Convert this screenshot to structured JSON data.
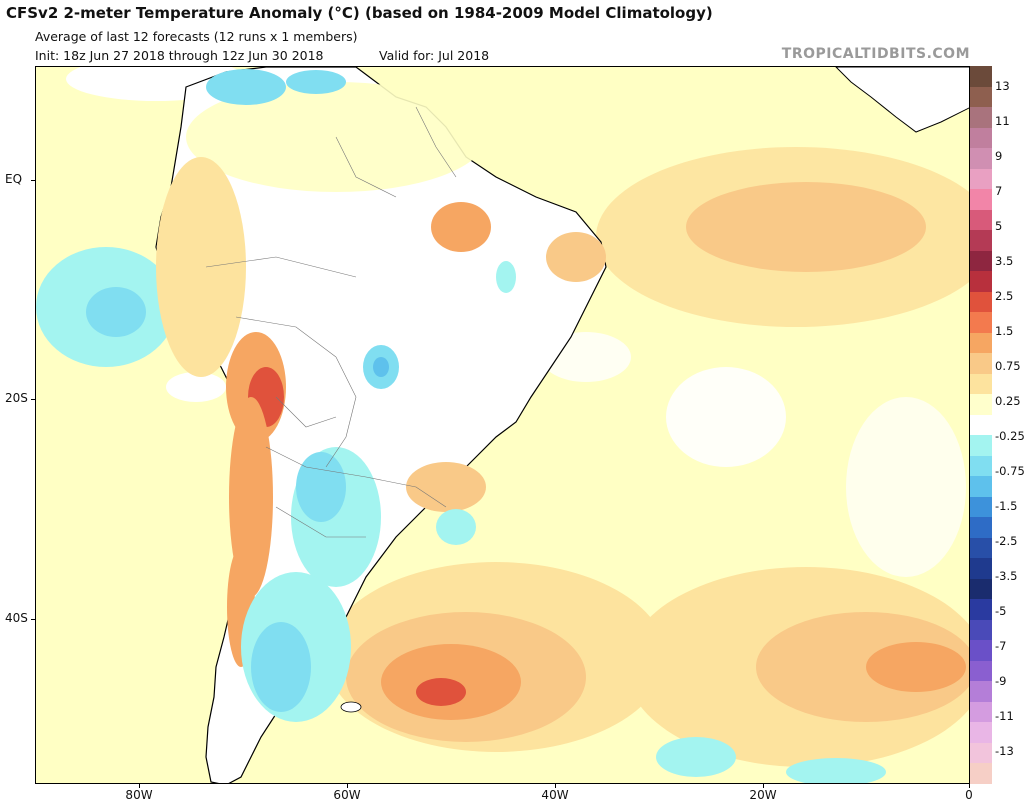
{
  "header": {
    "title": "CFSv2 2-meter Temperature Anomaly (°C) (based on 1984-2009 Model Climatology)",
    "subtitle": "Average of last 12 forecasts (12 runs x 1 members)",
    "init": "Init: 18z Jun 27 2018 through 12z Jun 30 2018",
    "valid": "Valid for: Jul 2018",
    "brand": "TROPICALTIDBITS.COM"
  },
  "map": {
    "lat_labels": [
      "EQ",
      "20S",
      "40S"
    ],
    "lon_labels": [
      "80W",
      "60W",
      "40W",
      "20W",
      "0"
    ],
    "colors": {
      "ocean_neutral": "#ffffc4",
      "warm_025": "#fff0b0",
      "warm_075": "#fbd88a",
      "warm_15": "#f6a25e",
      "warm_25": "#ea7a45",
      "cold_025": "#9eecec",
      "cold_075": "#7ad6ee",
      "cold_15": "#4aa6e4",
      "neutral": "#ffffff",
      "coast": "#000000",
      "border": "#888888"
    }
  },
  "colorbar": {
    "labels": [
      "13",
      "11",
      "9",
      "7",
      "5",
      "3.5",
      "2.5",
      "1.5",
      "0.75",
      "0.25",
      "-0.25",
      "-0.75",
      "-1.5",
      "-2.5",
      "-3.5",
      "-5",
      "-7",
      "-9",
      "-11",
      "-13"
    ],
    "colors": [
      "#6b4a3a",
      "#8e5f4f",
      "#a9737d",
      "#c07f9e",
      "#d08fb2",
      "#e9a0c2",
      "#f285a8",
      "#d85a7a",
      "#b43a55",
      "#8e2640",
      "#b8303d",
      "#e0523c",
      "#f37a4e",
      "#f6a662",
      "#f9c988",
      "#fde39e",
      "#ffffcc",
      "#ffffff",
      "#a3f4f0",
      "#80def1",
      "#5ec1ec",
      "#3d92db",
      "#2e6cc6",
      "#284fa8",
      "#1f3a8e",
      "#1a2c6e",
      "#2a3aa0",
      "#4a4ab8",
      "#6a50c8",
      "#8a5fd0",
      "#b47ed8",
      "#d49ce0",
      "#e9b6e6",
      "#f2c4dc",
      "#f6cfc6"
    ]
  }
}
